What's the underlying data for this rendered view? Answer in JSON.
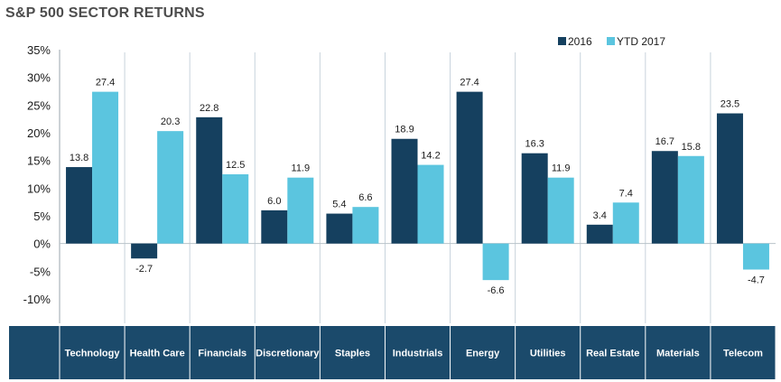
{
  "chart_data": {
    "type": "bar",
    "title": "S&P 500 SECTOR RETURNS",
    "categories": [
      "Technology",
      "Health Care",
      "Financials",
      "Discretionary",
      "Staples",
      "Industrials",
      "Energy",
      "Utilities",
      "Real Estate",
      "Materials",
      "Telecom"
    ],
    "series": [
      {
        "name": "2016",
        "color": "#15405f",
        "values": [
          13.8,
          -2.7,
          22.8,
          6.0,
          5.4,
          18.9,
          27.4,
          16.3,
          3.4,
          16.7,
          23.5
        ]
      },
      {
        "name": "YTD 2017",
        "color": "#5bc5df",
        "values": [
          27.4,
          20.3,
          12.5,
          11.9,
          6.6,
          14.2,
          -6.6,
          11.9,
          7.4,
          15.8,
          -4.7
        ]
      }
    ],
    "data_labels": [
      [
        "13.8",
        "-2.7",
        "22.8",
        "6.0",
        "5.4",
        "18.9",
        "27.4",
        "16.3",
        "3.4",
        "16.7",
        "23.5"
      ],
      [
        "27.4",
        "20.3",
        "12.5",
        "11.9",
        "6.6",
        "14.2",
        "-6.6",
        "11.9",
        "7.4",
        "15.8",
        "-4.7"
      ]
    ],
    "ylim": [
      -10,
      35
    ],
    "yticks": [
      35,
      30,
      25,
      20,
      15,
      10,
      5,
      0,
      -5,
      -10
    ],
    "ytick_labels": [
      "35%",
      "30%",
      "25%",
      "20%",
      "15%",
      "10%",
      "5%",
      "0%",
      "-5%",
      "-10%"
    ],
    "xlabel": "",
    "ylabel": "",
    "grid": false,
    "legend": "top-right",
    "category_band_color": "#1b4a6b",
    "divider_color": "#c8d3dc"
  }
}
